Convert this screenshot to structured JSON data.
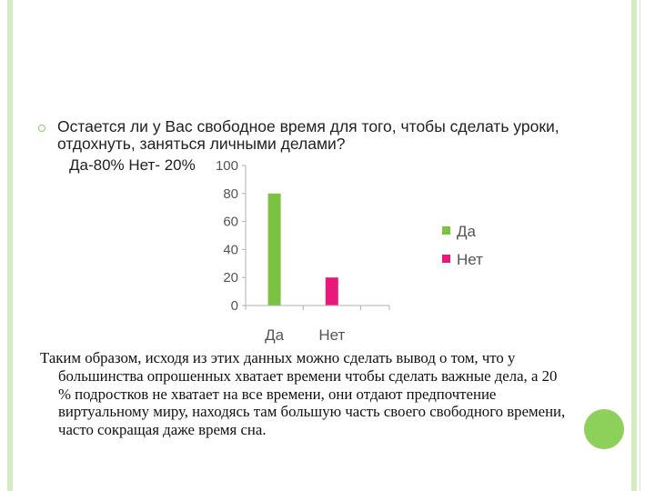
{
  "slide": {
    "question": "Остается ли у Вас свободное время для того, чтобы сделать уроки, отдохнуть, заняться личными делами?",
    "answer": "Да-80% Нет- 20%",
    "conclusion": "Таким образом, исходя из этих данных можно сделать вывод о том, что у большинства опрошенных хватает времени чтобы сделать важные дела, а 20 % подростков не хватает на все времени, они отдают предпочтение виртуальному миру, находясь там большую часть своего свободного времени, часто сокращая даже  время сна."
  },
  "colors": {
    "accent_green": "#8ed15a",
    "bar_yes": "#7cc242",
    "bar_no": "#e8197a",
    "frame": "#d4ecc4"
  },
  "chart_data": {
    "type": "bar",
    "categories": [
      "Да",
      "Нет"
    ],
    "series": [
      {
        "name": "Да",
        "values": [
          80,
          null
        ]
      },
      {
        "name": "Нет",
        "values": [
          null,
          20
        ]
      }
    ],
    "yticks": [
      0,
      20,
      40,
      60,
      80,
      100
    ],
    "ylim": [
      0,
      100
    ],
    "legend_position": "right",
    "grid": false
  }
}
